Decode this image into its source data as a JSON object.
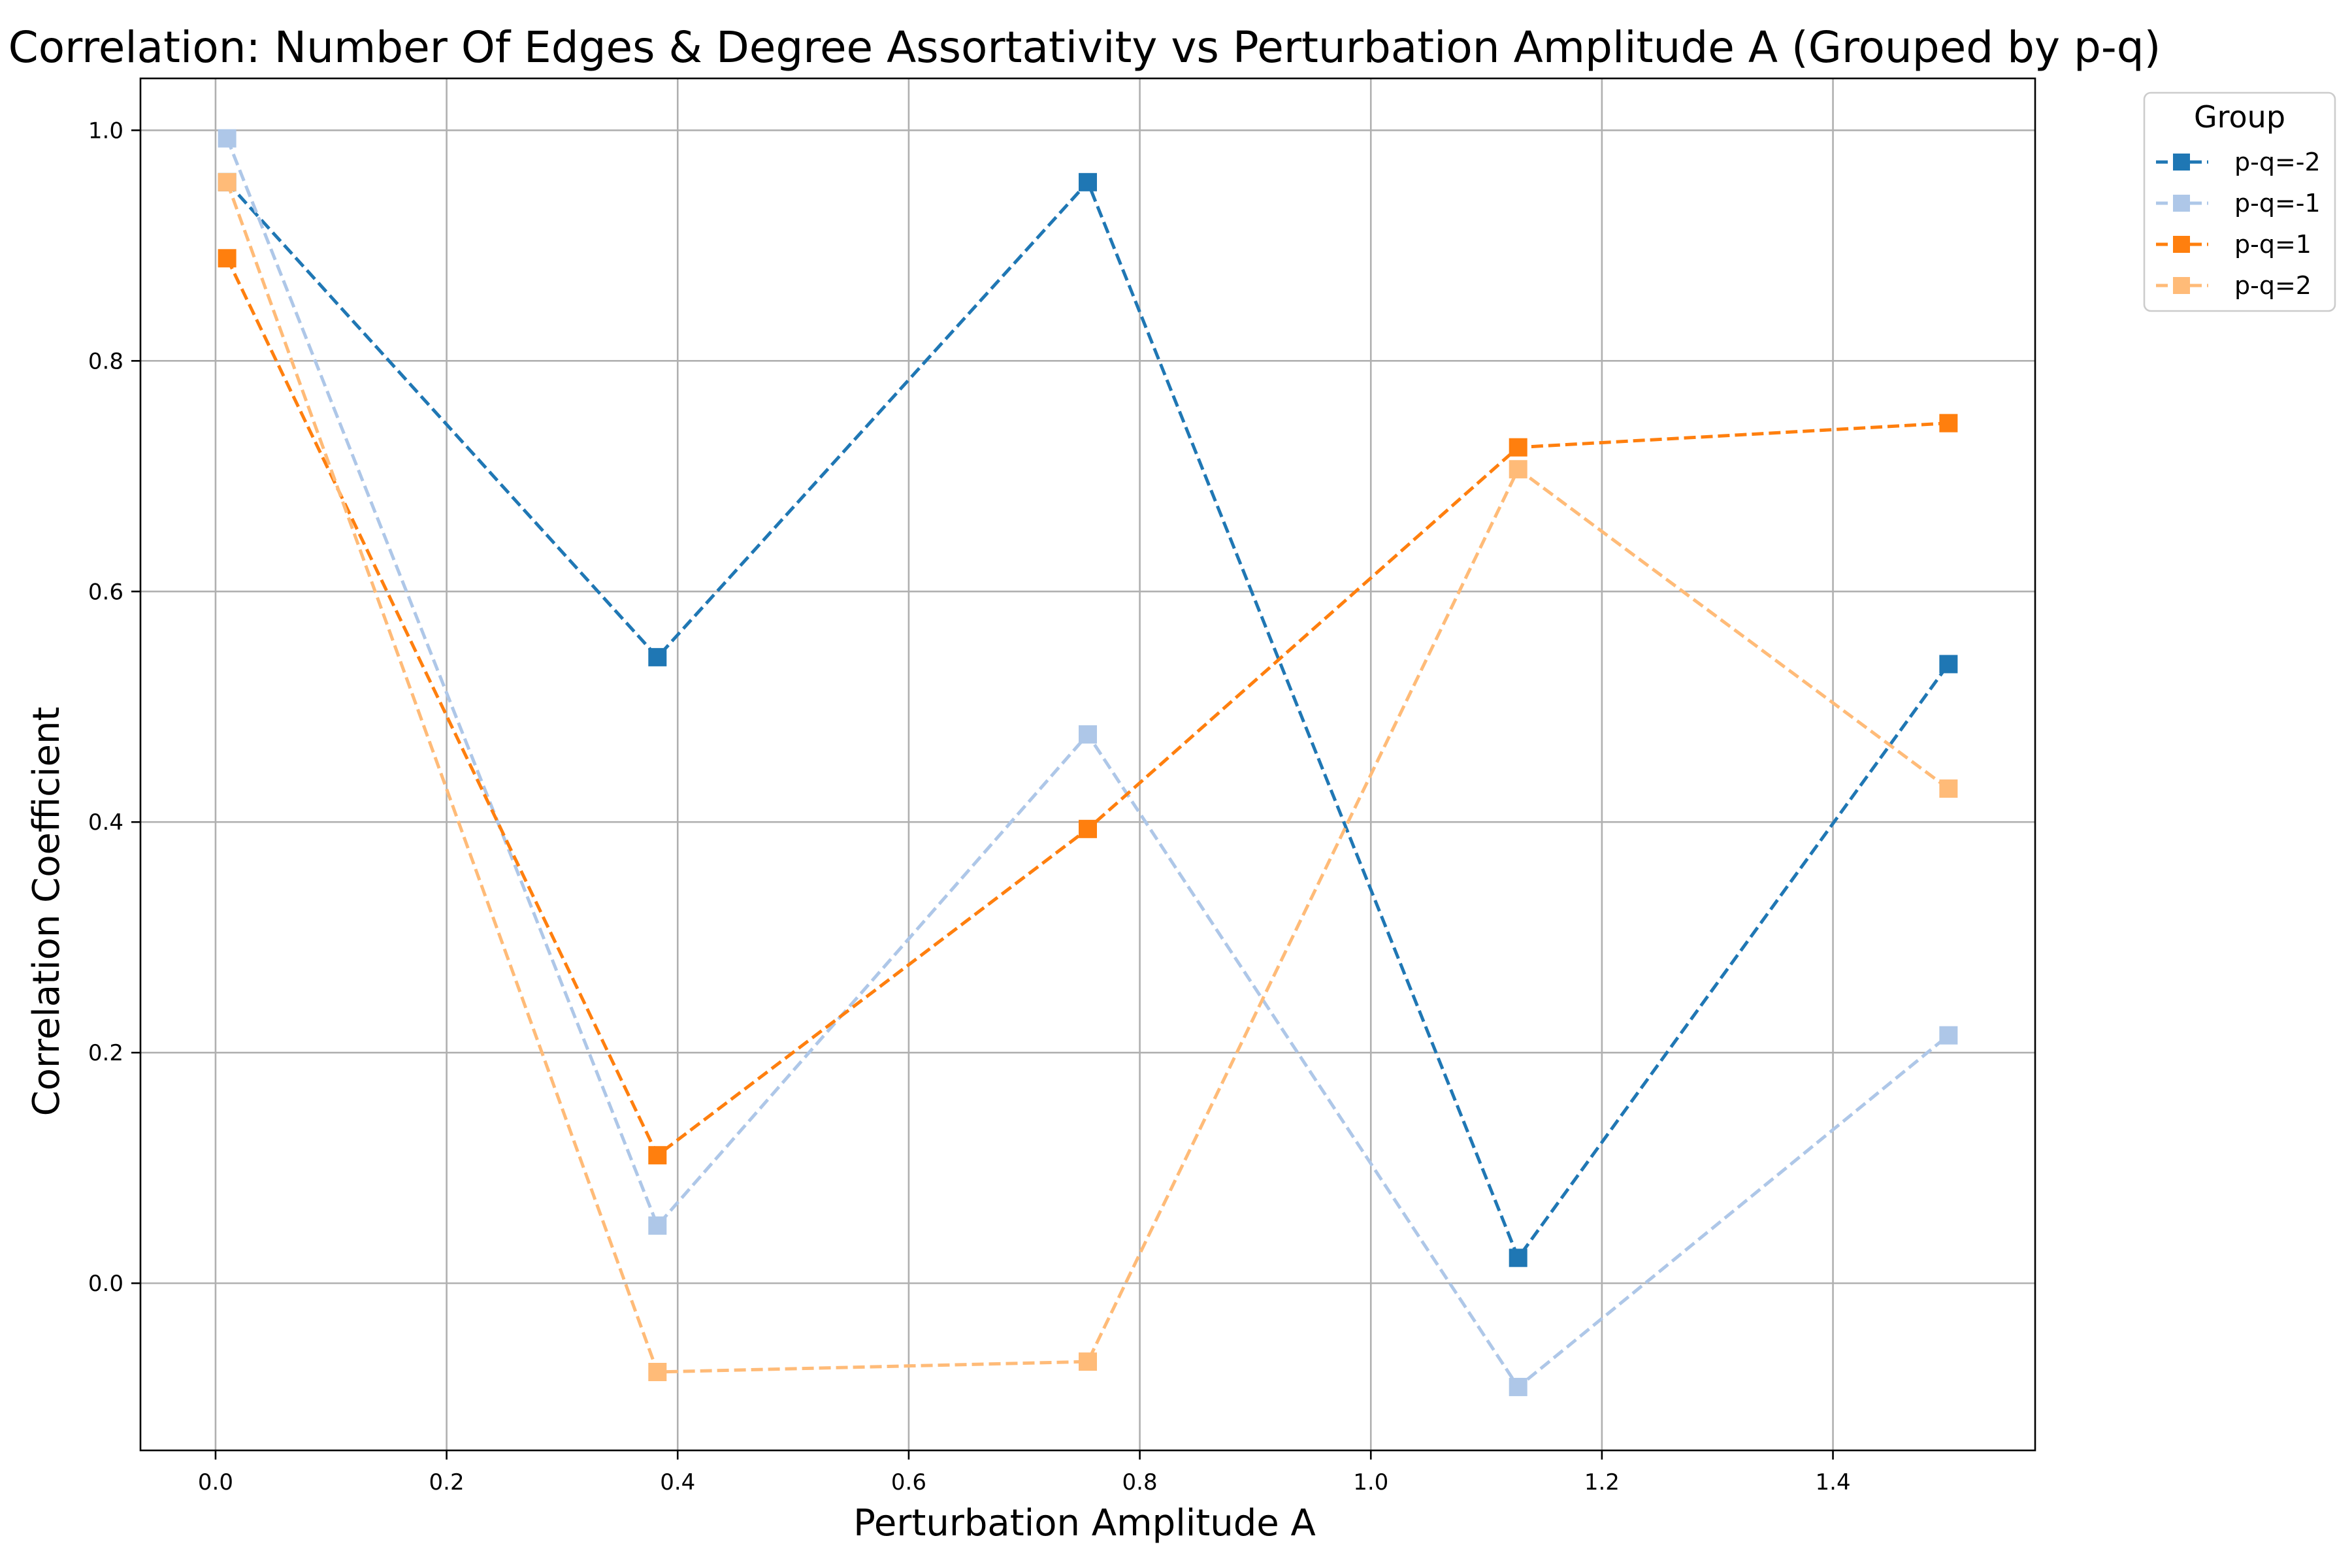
{
  "chart_data": {
    "type": "line",
    "title": "Correlation: Number Of Edges & Degree Assortativity vs Perturbation Amplitude A (Grouped by p-q)",
    "xlabel": "Perturbation Amplitude A",
    "ylabel": "Correlation Coefficient",
    "xlim": [
      -0.065,
      1.575
    ],
    "ylim": [
      -0.145,
      1.045
    ],
    "x": [
      0.01,
      0.3825,
      0.755,
      1.1275,
      1.5
    ],
    "x_ticks": [
      0.0,
      0.2,
      0.4,
      0.6,
      0.8,
      1.0,
      1.2,
      1.4
    ],
    "x_tick_labels": [
      "0.0",
      "0.2",
      "0.4",
      "0.6",
      "0.8",
      "1.0",
      "1.2",
      "1.4"
    ],
    "y_ticks": [
      0.0,
      0.2,
      0.4,
      0.6,
      0.8,
      1.0
    ],
    "y_tick_labels": [
      "0.0",
      "0.2",
      "0.4",
      "0.6",
      "0.8",
      "1.0"
    ],
    "grid": true,
    "line_style": "dashed",
    "marker": "square",
    "legend": {
      "title": "Group",
      "position": "outside-top-right"
    },
    "series": [
      {
        "name": "p-q=-2",
        "color": "#1f77b4",
        "values": [
          0.955,
          0.543,
          0.955,
          0.022,
          0.537
        ]
      },
      {
        "name": "p-q=-1",
        "color": "#aec7e8",
        "values": [
          0.993,
          0.05,
          0.476,
          -0.09,
          0.215
        ]
      },
      {
        "name": "p-q=1",
        "color": "#ff7f0e",
        "values": [
          0.889,
          0.111,
          0.394,
          0.725,
          0.746
        ]
      },
      {
        "name": "p-q=2",
        "color": "#ffbb78",
        "values": [
          0.955,
          -0.077,
          -0.068,
          0.706,
          0.429
        ]
      }
    ]
  }
}
